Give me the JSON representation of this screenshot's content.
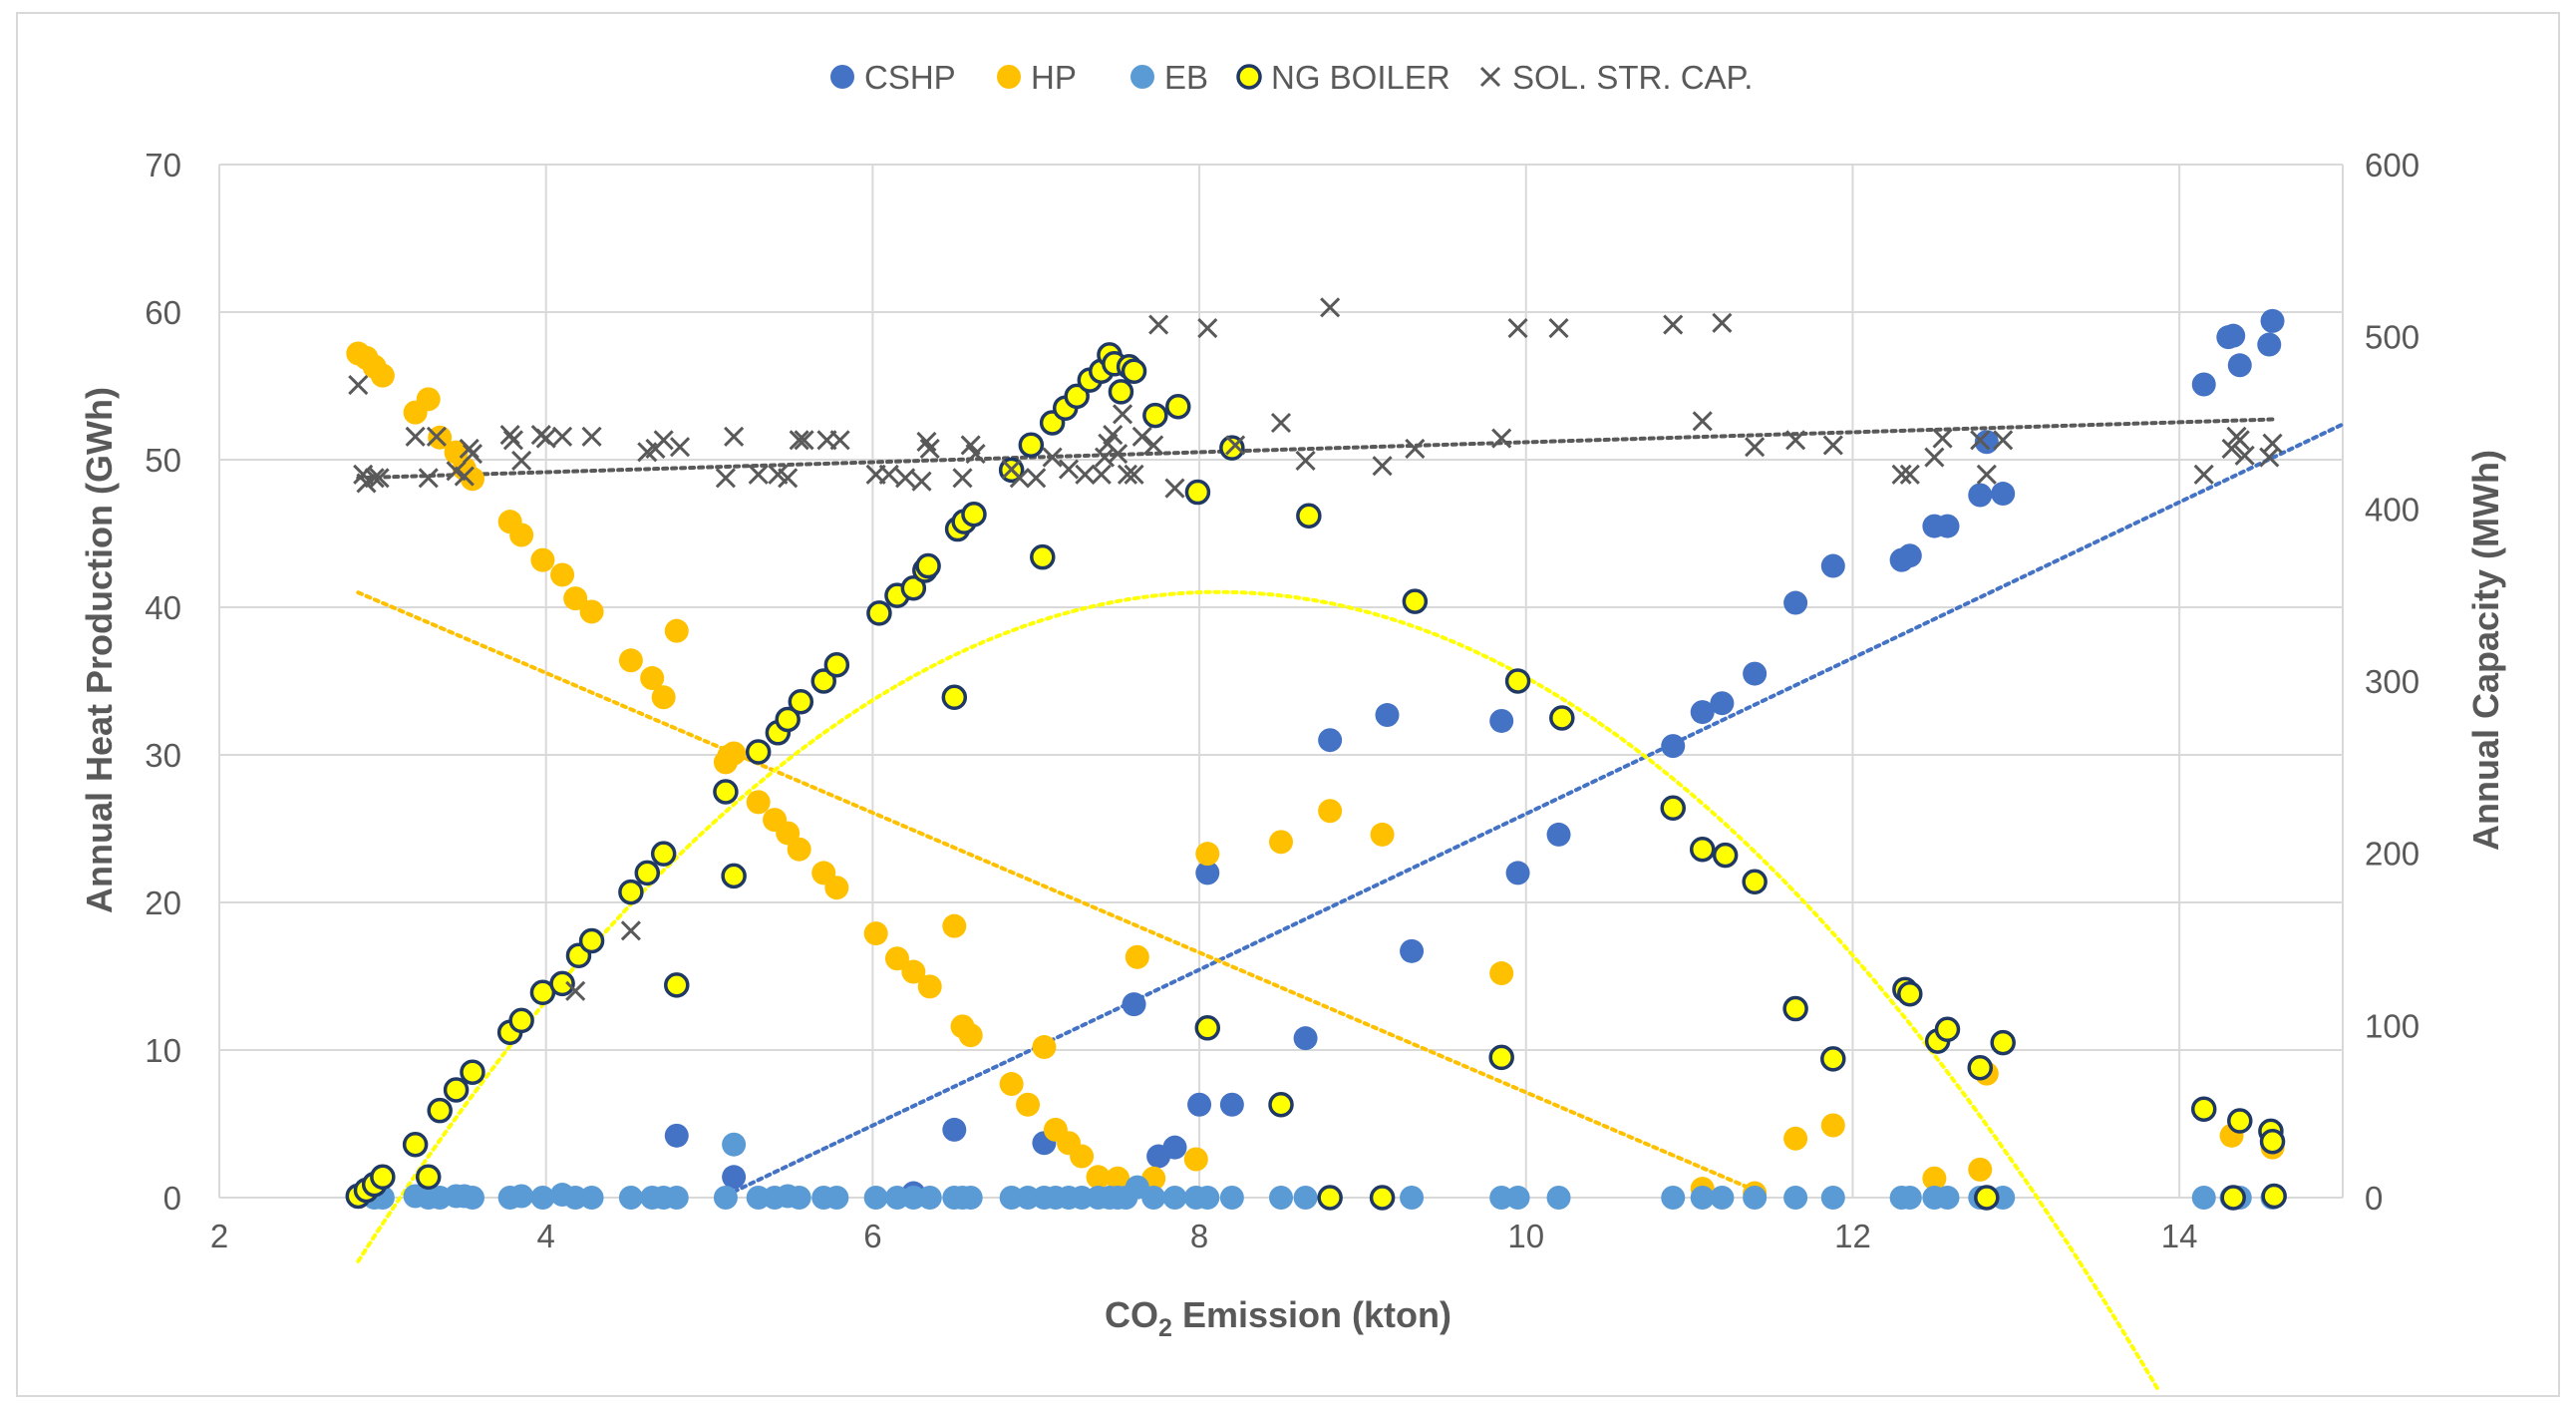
{
  "chart_data": {
    "type": "scatter",
    "title": "",
    "xlabel": "CO2 Emission (kton)",
    "xlabel_main": "CO",
    "xlabel_sub": "2",
    "xlabel_rest": " Emission (kton)",
    "ylabel": "Annual Heat Production (GWh)",
    "y2label": "Annual Capacity (MWh)",
    "xlim": [
      2,
      15
    ],
    "ylim": [
      0,
      70
    ],
    "y2lim": [
      0,
      600
    ],
    "x_ticks": [
      2,
      4,
      6,
      8,
      10,
      12,
      14
    ],
    "y_ticks": [
      0,
      10,
      20,
      30,
      40,
      50,
      60,
      70
    ],
    "y2_ticks": [
      0,
      100,
      200,
      300,
      400,
      500,
      600
    ],
    "grid": true,
    "legend_position": "top-center",
    "colors": {
      "cshp": "#4472C4",
      "hp": "#FFC000",
      "eb": "#5B9BD5",
      "ng_fill": "#FFFF00",
      "ng_edge": "#1F3864",
      "sol": "#595959",
      "grid": "#D9D9D9",
      "axis_text": "#595959"
    },
    "series": [
      {
        "name": "CSHP",
        "marker": "circle",
        "axis": "left",
        "x": [
          4.8,
          5.15,
          6.25,
          6.5,
          7.05,
          7.6,
          7.75,
          7.85,
          8.0,
          8.05,
          8.2,
          8.65,
          8.8,
          9.15,
          9.3,
          9.85,
          9.95,
          10.2,
          10.9,
          11.08,
          11.2,
          11.4,
          11.65,
          11.88,
          12.3,
          12.35,
          12.5,
          12.58,
          12.78,
          12.82,
          12.92,
          14.15,
          14.3,
          14.33,
          14.37,
          14.55,
          14.57
        ],
        "y": [
          4.2,
          1.4,
          0.3,
          4.6,
          3.7,
          13.1,
          2.8,
          3.4,
          6.3,
          22.0,
          6.3,
          10.8,
          31.0,
          32.7,
          16.7,
          32.3,
          22.0,
          24.6,
          30.6,
          32.9,
          33.5,
          35.5,
          40.3,
          42.8,
          43.2,
          43.5,
          45.5,
          45.5,
          47.6,
          51.2,
          47.7,
          55.1,
          58.3,
          58.4,
          56.4,
          57.8,
          59.4
        ]
      },
      {
        "name": "HP",
        "marker": "circle",
        "axis": "left",
        "x": [
          2.85,
          2.9,
          2.95,
          3.0,
          3.2,
          3.28,
          3.35,
          3.45,
          3.5,
          3.55,
          3.78,
          3.85,
          3.98,
          4.1,
          4.18,
          4.28,
          4.52,
          4.65,
          4.72,
          4.8,
          5.1,
          5.12,
          5.15,
          5.3,
          5.4,
          5.48,
          5.55,
          5.7,
          5.78,
          6.02,
          6.15,
          6.25,
          6.35,
          6.5,
          6.55,
          6.6,
          6.85,
          6.95,
          7.05,
          7.12,
          7.2,
          7.28,
          7.38,
          7.5,
          7.62,
          7.72,
          7.98,
          8.05,
          8.5,
          8.8,
          9.12,
          9.85,
          11.08,
          11.4,
          11.65,
          11.88,
          12.5,
          12.78,
          12.82,
          14.32,
          14.57
        ],
        "y": [
          57.2,
          56.9,
          56.3,
          55.7,
          53.2,
          54.1,
          51.5,
          50.5,
          49.4,
          48.7,
          45.8,
          44.9,
          43.2,
          42.2,
          40.6,
          39.7,
          36.4,
          35.2,
          33.9,
          38.4,
          29.5,
          29.9,
          30.1,
          26.8,
          25.6,
          24.7,
          23.6,
          22.0,
          21.0,
          17.9,
          16.2,
          15.3,
          14.3,
          18.4,
          11.6,
          11.0,
          7.7,
          6.3,
          10.2,
          4.6,
          3.7,
          2.8,
          1.4,
          1.3,
          16.3,
          1.3,
          2.6,
          23.3,
          24.1,
          26.2,
          24.6,
          15.2,
          0.6,
          0.3,
          4.0,
          4.9,
          1.3,
          1.9,
          8.4,
          4.2,
          3.4
        ]
      },
      {
        "name": "EB",
        "marker": "circle",
        "axis": "left",
        "x": [
          2.95,
          3.0,
          3.2,
          3.28,
          3.35,
          3.45,
          3.5,
          3.55,
          3.78,
          3.85,
          3.98,
          4.1,
          4.18,
          4.28,
          4.52,
          4.65,
          4.72,
          4.8,
          5.1,
          5.15,
          5.3,
          5.4,
          5.48,
          5.55,
          5.7,
          5.78,
          6.02,
          6.15,
          6.25,
          6.35,
          6.5,
          6.55,
          6.6,
          6.85,
          6.95,
          7.05,
          7.12,
          7.2,
          7.28,
          7.38,
          7.45,
          7.5,
          7.55,
          7.62,
          7.72,
          7.85,
          7.98,
          8.05,
          8.2,
          8.5,
          8.65,
          8.8,
          9.12,
          9.3,
          9.85,
          9.95,
          10.2,
          10.9,
          11.08,
          11.2,
          11.4,
          11.65,
          11.88,
          12.3,
          12.35,
          12.5,
          12.58,
          12.78,
          12.92,
          14.15,
          14.32,
          14.37,
          14.57
        ],
        "y": [
          0,
          0,
          0.1,
          0,
          0,
          0.1,
          0.1,
          0,
          0,
          0.1,
          0,
          0.2,
          0,
          0,
          0,
          0,
          0,
          0,
          0,
          3.6,
          0,
          0,
          0.1,
          0,
          0,
          0,
          0,
          0,
          0,
          0,
          0,
          0,
          0,
          0,
          0,
          0,
          0,
          0,
          0,
          0,
          0,
          0,
          0,
          0.7,
          0,
          0,
          0,
          0,
          0,
          0,
          0,
          0,
          0,
          0,
          0,
          0,
          0,
          0,
          0,
          0,
          0,
          0,
          0,
          0,
          0,
          0,
          0,
          0,
          0,
          0,
          0,
          0,
          0
        ]
      },
      {
        "name": "NG BOILER",
        "marker": "circle-outlined",
        "axis": "left",
        "x": [
          2.85,
          2.9,
          2.95,
          3.0,
          3.2,
          3.28,
          3.35,
          3.45,
          3.55,
          3.78,
          3.85,
          3.98,
          4.1,
          4.2,
          4.28,
          4.52,
          4.62,
          4.72,
          4.8,
          5.1,
          5.15,
          5.3,
          5.42,
          5.48,
          5.56,
          5.7,
          5.78,
          6.04,
          6.15,
          6.25,
          6.32,
          6.34,
          6.5,
          6.52,
          6.56,
          6.62,
          6.85,
          6.97,
          7.04,
          7.1,
          7.18,
          7.25,
          7.33,
          7.4,
          7.45,
          7.48,
          7.52,
          7.57,
          7.6,
          7.73,
          7.87,
          7.99,
          8.05,
          8.2,
          8.5,
          8.67,
          8.8,
          9.12,
          9.32,
          9.85,
          9.95,
          10.22,
          10.9,
          11.08,
          11.22,
          11.4,
          11.65,
          11.88,
          12.32,
          12.35,
          12.52,
          12.58,
          12.78,
          12.82,
          12.92,
          14.15,
          14.33,
          14.37,
          14.56,
          14.57,
          14.58
        ],
        "y": [
          0.1,
          0.5,
          0.9,
          1.4,
          3.6,
          1.4,
          5.9,
          7.3,
          8.5,
          11.2,
          12.0,
          13.9,
          14.5,
          16.4,
          17.4,
          20.7,
          22.0,
          23.3,
          14.4,
          27.5,
          21.8,
          30.2,
          31.5,
          32.4,
          33.6,
          35.0,
          36.1,
          39.6,
          40.8,
          41.3,
          42.5,
          42.8,
          33.9,
          45.3,
          45.8,
          46.3,
          49.3,
          51.0,
          43.4,
          52.5,
          53.5,
          54.3,
          55.4,
          56.0,
          57.1,
          56.5,
          54.6,
          56.3,
          56.0,
          53.0,
          53.6,
          47.8,
          11.5,
          50.8,
          6.3,
          46.2,
          0,
          0,
          40.4,
          9.5,
          35.0,
          32.5,
          26.4,
          23.6,
          23.2,
          21.4,
          12.8,
          9.4,
          14.1,
          13.8,
          10.6,
          11.4,
          8.8,
          0,
          10.5,
          6.0,
          0,
          5.2,
          4.5,
          3.8,
          0.1
        ]
      },
      {
        "name": "SOL. STR. CAP.",
        "marker": "x",
        "axis": "right",
        "x": [
          2.85,
          2.88,
          2.9,
          2.95,
          2.98,
          3.2,
          3.28,
          3.33,
          3.45,
          3.5,
          3.53,
          3.55,
          3.78,
          3.8,
          3.85,
          3.97,
          4.0,
          4.1,
          4.18,
          4.28,
          4.52,
          4.62,
          4.67,
          4.72,
          4.82,
          5.1,
          5.15,
          5.3,
          5.42,
          5.48,
          5.55,
          5.58,
          5.72,
          5.8,
          6.02,
          6.1,
          6.2,
          6.3,
          6.33,
          6.35,
          6.55,
          6.6,
          6.63,
          6.85,
          6.9,
          7.0,
          7.1,
          7.2,
          7.3,
          7.4,
          7.42,
          7.44,
          7.47,
          7.5,
          7.53,
          7.56,
          7.6,
          7.65,
          7.72,
          7.75,
          7.85,
          8.05,
          8.22,
          8.5,
          8.65,
          8.8,
          9.12,
          9.32,
          9.85,
          9.95,
          10.2,
          10.9,
          11.08,
          11.2,
          11.4,
          11.65,
          11.88,
          12.3,
          12.35,
          12.5,
          12.55,
          12.78,
          12.82,
          12.92,
          14.15,
          14.32,
          14.35,
          14.37,
          14.4,
          14.55,
          14.57
        ],
        "y": [
          472,
          420,
          415,
          418,
          418,
          442,
          418,
          442,
          422,
          419,
          435,
          432,
          443,
          440,
          428,
          443,
          441,
          442,
          120,
          442,
          155,
          433,
          435,
          440,
          436,
          418,
          442,
          420,
          420,
          418,
          440,
          440,
          440,
          440,
          420,
          420,
          418,
          416,
          439,
          435,
          418,
          437,
          432,
          423,
          418,
          418,
          430,
          423,
          420,
          420,
          430,
          438,
          443,
          432,
          455,
          420,
          420,
          442,
          437,
          507,
          412,
          505,
          437,
          450,
          428,
          517,
          425,
          435,
          441,
          505,
          505,
          507,
          451,
          508,
          436,
          440,
          437,
          420,
          420,
          430,
          441,
          440,
          420,
          440,
          420,
          435,
          442,
          440,
          431,
          430,
          438
        ]
      }
    ],
    "trendlines": [
      {
        "series": "CSHP",
        "kind": "linear",
        "x": [
          5.15,
          15.0
        ],
        "y": [
          0.4,
          52.4
        ]
      },
      {
        "series": "HP",
        "kind": "linear",
        "x": [
          2.85,
          11.4
        ],
        "y": [
          41.0,
          0.5
        ]
      },
      {
        "series": "NG BOILER",
        "kind": "polynomial",
        "coeffs": [
          -66.65,
          26.53,
          -1.634
        ],
        "x_range": [
          2.85,
          13.87
        ]
      },
      {
        "series": "SOL. STR. CAP.",
        "kind": "linear",
        "axis": "right",
        "x": [
          2.85,
          14.57
        ],
        "y": [
          418,
          452
        ]
      }
    ]
  }
}
